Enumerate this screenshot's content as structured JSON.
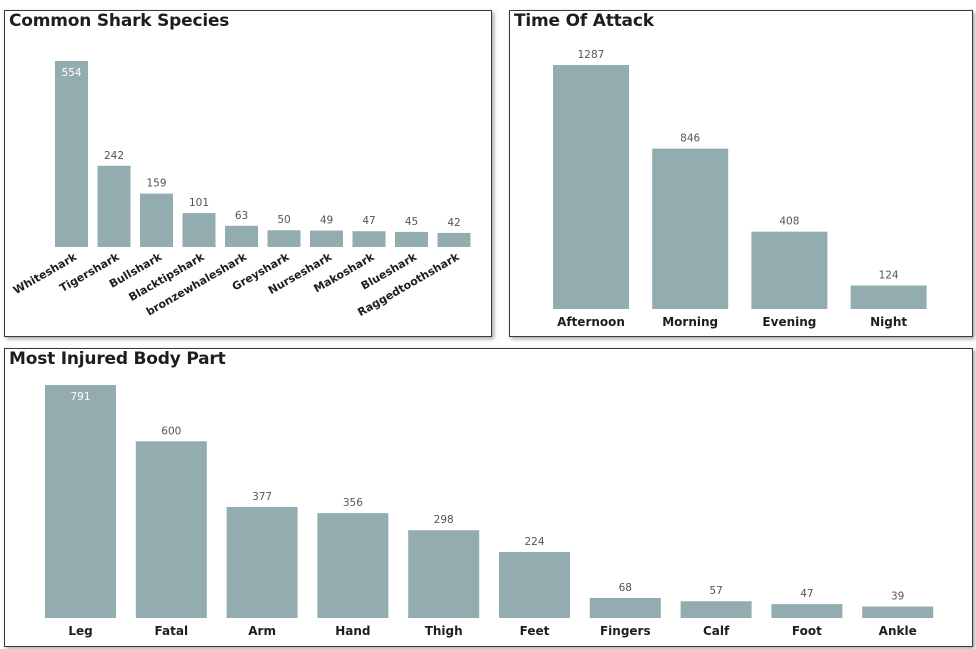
{
  "chart_data": [
    {
      "type": "bar",
      "title": "Common Shark Species",
      "categories": [
        "Whiteshark",
        "Tigershark",
        "Bullshark",
        "Blacktipshark",
        "bronzewhaleshark",
        "Greyshark",
        "Nurseshark",
        "Makoshark",
        "Blueshark",
        "Raggedtoothshark"
      ],
      "values": [
        554,
        242,
        159,
        101,
        63,
        50,
        49,
        47,
        45,
        42
      ],
      "color": "#93acb0",
      "xlabel": "",
      "ylabel": "",
      "ylim": [
        0,
        554
      ],
      "grid": false
    },
    {
      "type": "bar",
      "title": "Time Of Attack",
      "categories": [
        "Afternoon",
        "Morning",
        "Evening",
        "Night"
      ],
      "values": [
        1287,
        846,
        408,
        124
      ],
      "color": "#93acb0",
      "xlabel": "",
      "ylabel": "",
      "ylim": [
        0,
        1287
      ],
      "grid": false
    },
    {
      "type": "bar",
      "title": "Most Injured Body Part",
      "categories": [
        "Leg",
        "Fatal",
        "Arm",
        "Hand",
        "Thigh",
        "Feet",
        "Fingers",
        "Calf",
        "Foot",
        "Ankle"
      ],
      "values": [
        791,
        600,
        377,
        356,
        298,
        224,
        68,
        57,
        47,
        39
      ],
      "color": "#93acb0",
      "xlabel": "",
      "ylabel": "",
      "ylim": [
        0,
        791
      ],
      "grid": false
    }
  ]
}
